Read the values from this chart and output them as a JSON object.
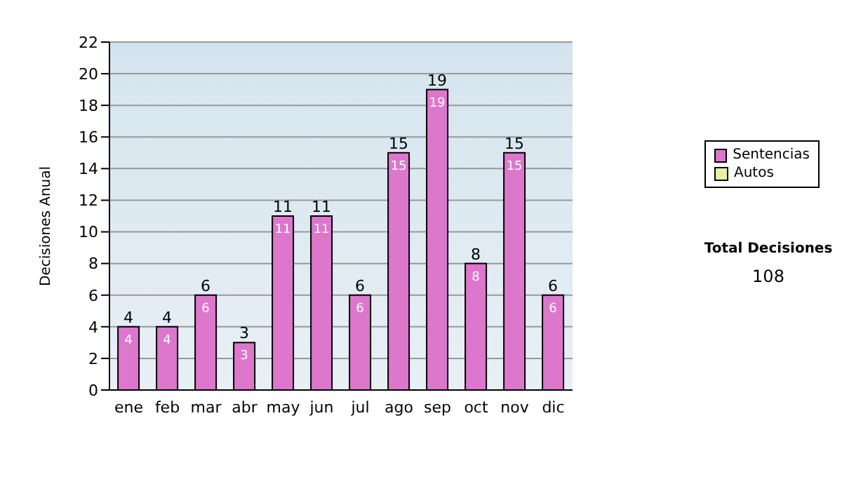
{
  "chart_data": {
    "type": "bar",
    "ylabel": "Decisiones Anual",
    "categories": [
      "ene",
      "feb",
      "mar",
      "abr",
      "may",
      "jun",
      "jul",
      "ago",
      "sep",
      "oct",
      "nov",
      "dic"
    ],
    "series": [
      {
        "name": "Sentencias",
        "color": "#dd77cc",
        "values": [
          4,
          4,
          6,
          3,
          11,
          11,
          6,
          15,
          19,
          8,
          15,
          6
        ],
        "value_labels": [
          "4",
          "4",
          "6",
          "3",
          "11",
          "11",
          "6",
          "15",
          "19",
          "8",
          "15",
          "6"
        ]
      },
      {
        "name": "Autos",
        "color": "#e8f0a0",
        "values": [
          null,
          null,
          null,
          null,
          null,
          null,
          null,
          null,
          null,
          null,
          null,
          null
        ]
      }
    ],
    "stacked": true,
    "totals": [
      "4",
      "4",
      "6",
      "3",
      "11",
      "11",
      "6",
      "15",
      "19",
      "8",
      "15",
      "6"
    ],
    "ylim": [
      0,
      22
    ],
    "yticks": [
      0,
      2,
      4,
      6,
      8,
      10,
      12,
      14,
      16,
      18,
      20,
      22
    ],
    "grid": "y",
    "legend": "right",
    "annotations": [
      "Total Decisiones",
      "108"
    ]
  }
}
